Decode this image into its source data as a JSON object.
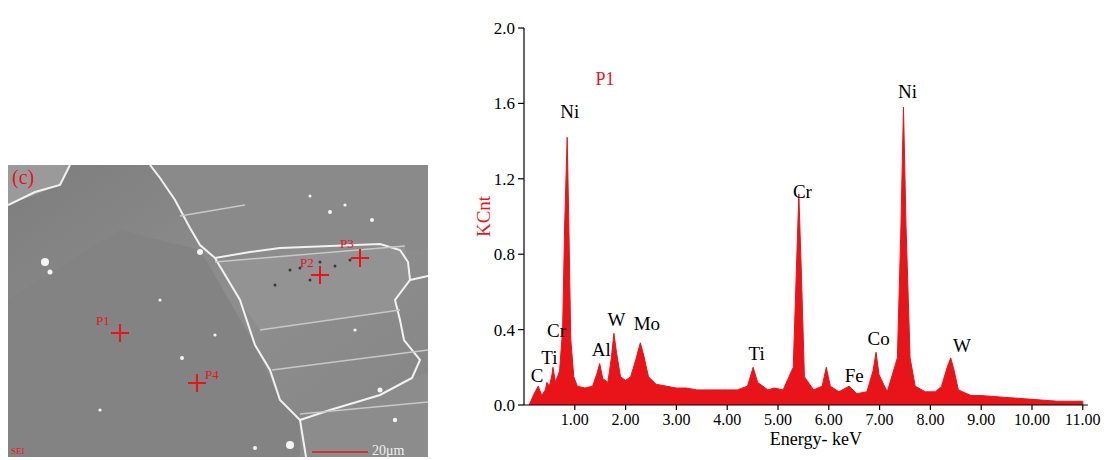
{
  "image": {
    "panel_label": "(c)",
    "points": [
      "P1",
      "P2",
      "P3",
      "P4"
    ],
    "detector": "SEI",
    "scale_bar": "20μm"
  },
  "chart_data": {
    "type": "area",
    "title": "P1",
    "x_label": "Energy- keV",
    "y_label": "KCnt",
    "x": [
      0.1,
      0.2,
      0.28,
      0.35,
      0.42,
      0.45,
      0.5,
      0.55,
      0.57,
      0.62,
      0.7,
      0.76,
      0.8,
      0.85,
      0.88,
      0.92,
      0.98,
      1.05,
      1.2,
      1.35,
      1.44,
      1.49,
      1.55,
      1.65,
      1.72,
      1.77,
      1.82,
      1.9,
      2.0,
      2.1,
      2.2,
      2.29,
      2.36,
      2.45,
      2.6,
      2.8,
      3.0,
      3.2,
      3.4,
      3.6,
      3.8,
      4.0,
      4.2,
      4.4,
      4.51,
      4.6,
      4.8,
      4.93,
      5.1,
      5.3,
      5.36,
      5.41,
      5.46,
      5.52,
      5.7,
      5.87,
      5.95,
      6.03,
      6.2,
      6.4,
      6.55,
      6.75,
      6.87,
      6.93,
      6.99,
      7.15,
      7.35,
      7.42,
      7.47,
      7.52,
      7.6,
      7.7,
      7.9,
      8.1,
      8.22,
      8.33,
      8.4,
      8.47,
      8.55,
      8.8,
      9.0,
      9.5,
      10.0,
      10.5,
      11.0
    ],
    "series": [
      {
        "color": "#e8141a",
        "values": [
          0.0,
          0.06,
          0.1,
          0.05,
          0.08,
          0.12,
          0.1,
          0.16,
          0.2,
          0.12,
          0.18,
          0.4,
          0.95,
          1.42,
          1.0,
          0.35,
          0.15,
          0.1,
          0.09,
          0.1,
          0.17,
          0.22,
          0.14,
          0.12,
          0.25,
          0.38,
          0.28,
          0.15,
          0.13,
          0.15,
          0.24,
          0.33,
          0.26,
          0.15,
          0.11,
          0.1,
          0.09,
          0.09,
          0.08,
          0.08,
          0.08,
          0.08,
          0.08,
          0.1,
          0.2,
          0.12,
          0.08,
          0.09,
          0.08,
          0.2,
          0.7,
          1.12,
          0.7,
          0.15,
          0.08,
          0.1,
          0.2,
          0.1,
          0.07,
          0.1,
          0.06,
          0.07,
          0.18,
          0.28,
          0.16,
          0.07,
          0.25,
          0.95,
          1.58,
          0.95,
          0.25,
          0.1,
          0.07,
          0.07,
          0.1,
          0.2,
          0.25,
          0.18,
          0.08,
          0.05,
          0.05,
          0.04,
          0.03,
          0.02,
          0.02
        ]
      }
    ],
    "xlim": [
      0,
      11.1
    ],
    "xticks": [
      {
        "value": 1,
        "label": "1.00"
      },
      {
        "value": 2,
        "label": "2.00"
      },
      {
        "value": 3,
        "label": "3.00"
      },
      {
        "value": 4,
        "label": "4.00"
      },
      {
        "value": 5,
        "label": "5.00"
      },
      {
        "value": 6,
        "label": "6.00"
      },
      {
        "value": 7,
        "label": "7.00"
      },
      {
        "value": 8,
        "label": "8.00"
      },
      {
        "value": 9,
        "label": "9.00"
      },
      {
        "value": 10,
        "label": "10.00"
      },
      {
        "value": 11,
        "label": "11.00"
      }
    ],
    "ylim": [
      0,
      2.0
    ],
    "yticks": [
      {
        "value": 0,
        "label": "0.0"
      },
      0.4,
      0.8,
      1.2,
      1.6,
      {
        "value": 2,
        "label": "2.0"
      }
    ],
    "grid": false,
    "annotations": [
      {
        "text": "C",
        "x": 0.26,
        "y": 0.12
      },
      {
        "text": "Ti",
        "x": 0.5,
        "y": 0.22
      },
      {
        "text": "Cr",
        "x": 0.64,
        "y": 0.36
      },
      {
        "text": "Ni",
        "x": 0.9,
        "y": 1.52
      },
      {
        "text": "Al",
        "x": 1.52,
        "y": 0.26
      },
      {
        "text": "W",
        "x": 1.82,
        "y": 0.42
      },
      {
        "text": "Mo",
        "x": 2.42,
        "y": 0.4
      },
      {
        "text": "Ti",
        "x": 4.58,
        "y": 0.24
      },
      {
        "text": "Cr",
        "x": 5.48,
        "y": 1.1
      },
      {
        "text": "Fe",
        "x": 6.5,
        "y": 0.12
      },
      {
        "text": "Co",
        "x": 6.98,
        "y": 0.32
      },
      {
        "text": "Ni",
        "x": 7.55,
        "y": 1.63
      },
      {
        "text": "W",
        "x": 8.62,
        "y": 0.28
      }
    ]
  }
}
